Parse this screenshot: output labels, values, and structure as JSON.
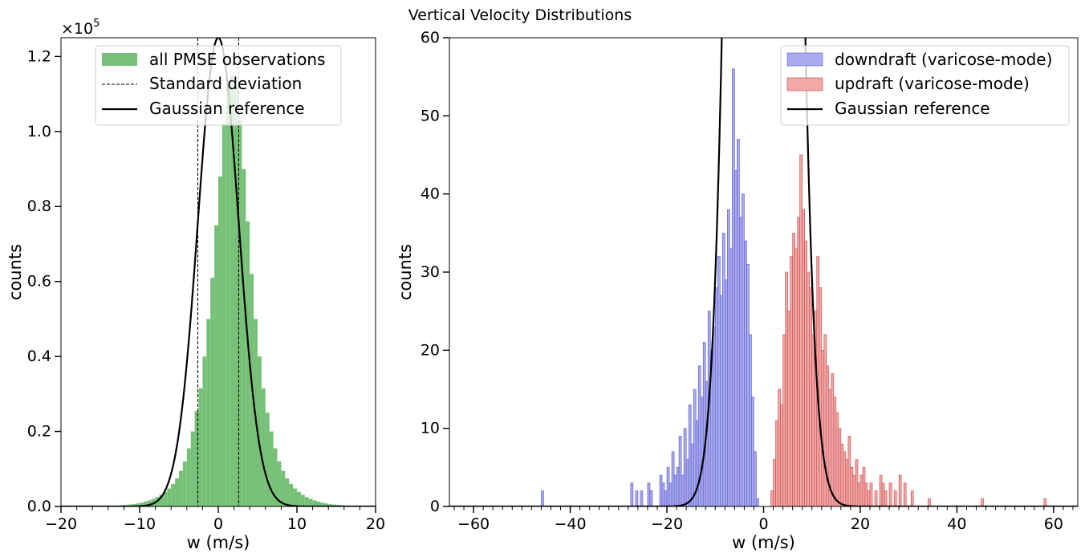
{
  "figure": {
    "title": "Vertical Velocity Distributions"
  },
  "chart_data": [
    {
      "type": "bar",
      "xlabel": "w (m/s)",
      "ylabel": "counts",
      "y_multiplier_label": "×10",
      "y_multiplier_exp": "5",
      "xlim": [
        -20,
        20
      ],
      "ylim": [
        0,
        125000
      ],
      "xticks": [
        -20,
        -10,
        0,
        10,
        20
      ],
      "xtick_labels": [
        "−20",
        "−10",
        "0",
        "10",
        "20"
      ],
      "yticks": [
        0,
        20000,
        40000,
        60000,
        80000,
        100000,
        120000
      ],
      "ytick_labels": [
        "0.0",
        "0.2",
        "0.4",
        "0.6",
        "0.8",
        "1.0",
        "1.2"
      ],
      "grid": false,
      "legend_position": "top-center",
      "histogram": {
        "name": "all PMSE observations",
        "color": "#77c077",
        "bin_width": 0.5,
        "bin_start": -14,
        "counts": [
          100,
          150,
          200,
          300,
          400,
          500,
          600,
          800,
          1000,
          1300,
          1600,
          2000,
          2500,
          3100,
          3900,
          4800,
          6000,
          7500,
          9500,
          12000,
          15500,
          20000,
          25500,
          31500,
          40000,
          50000,
          61000,
          75000,
          88000,
          102000,
          112000,
          115000,
          112000,
          103000,
          90000,
          76000,
          62000,
          50000,
          40000,
          31500,
          25000,
          20000,
          15500,
          12000,
          9500,
          7500,
          6000,
          4800,
          3900,
          3100,
          2500,
          2000,
          1600,
          1300,
          1000,
          800,
          600,
          500,
          400,
          300
        ]
      },
      "std_lines": {
        "name": "Standard deviation",
        "values": [
          -2.6,
          2.6
        ]
      },
      "gaussian": {
        "name": "Gaussian reference",
        "mean": 0,
        "sigma": 2.6,
        "peak": 125000
      }
    },
    {
      "type": "bar",
      "xlabel": "w (m/s)",
      "ylabel": "counts",
      "xlim": [
        -65,
        65
      ],
      "ylim": [
        0,
        60
      ],
      "xticks": [
        -60,
        -40,
        -20,
        0,
        20,
        40,
        60
      ],
      "xtick_labels": [
        "−60",
        "−40",
        "−20",
        "0",
        "20",
        "40",
        "60"
      ],
      "yticks": [
        0,
        10,
        20,
        30,
        40,
        50,
        60
      ],
      "ytick_labels": [
        "0",
        "10",
        "20",
        "30",
        "40",
        "50",
        "60"
      ],
      "grid": false,
      "legend_position": "top-right",
      "series": [
        {
          "name": "downdraft (varicose-mode)",
          "fill": "#aaaaee",
          "stroke": "#5555cc",
          "bin_width": 0.5,
          "bins": [
            [
              -46,
              2
            ],
            [
              -27.5,
              3
            ],
            [
              -26.5,
              2
            ],
            [
              -25.5,
              2
            ],
            [
              -24,
              3
            ],
            [
              -23.5,
              2
            ],
            [
              -21.5,
              4
            ],
            [
              -21,
              3
            ],
            [
              -20.5,
              2
            ],
            [
              -20,
              5
            ],
            [
              -19.5,
              3
            ],
            [
              -19,
              7
            ],
            [
              -18.5,
              4
            ],
            [
              -18,
              5
            ],
            [
              -17.5,
              9
            ],
            [
              -17,
              4
            ],
            [
              -16.5,
              10
            ],
            [
              -16,
              6
            ],
            [
              -15.5,
              13
            ],
            [
              -15,
              8
            ],
            [
              -14.5,
              15
            ],
            [
              -14,
              11
            ],
            [
              -13.5,
              18
            ],
            [
              -13,
              14
            ],
            [
              -12.5,
              21
            ],
            [
              -12,
              16
            ],
            [
              -11.5,
              25
            ],
            [
              -11,
              20
            ],
            [
              -10.5,
              23
            ],
            [
              -10,
              28
            ],
            [
              -9.5,
              32
            ],
            [
              -9,
              27
            ],
            [
              -8.5,
              35
            ],
            [
              -8,
              29
            ],
            [
              -7.5,
              38
            ],
            [
              -7,
              33
            ],
            [
              -6.5,
              56
            ],
            [
              -6,
              43
            ],
            [
              -5.5,
              47
            ],
            [
              -5,
              37
            ],
            [
              -4.5,
              40
            ],
            [
              -4,
              34
            ],
            [
              -3.5,
              31
            ],
            [
              -3,
              22
            ],
            [
              -2.5,
              14
            ],
            [
              -2,
              7
            ],
            [
              -1.5,
              1
            ]
          ]
        },
        {
          "name": "updraft (varicose-mode)",
          "fill": "#f0a8a8",
          "stroke": "#cc4444",
          "bin_width": 0.5,
          "bins": [
            [
              1.5,
              2
            ],
            [
              2,
              6
            ],
            [
              2.5,
              11
            ],
            [
              3,
              15
            ],
            [
              3.5,
              13
            ],
            [
              4,
              22
            ],
            [
              4.5,
              30
            ],
            [
              5,
              25
            ],
            [
              5.5,
              32
            ],
            [
              6,
              35
            ],
            [
              6.5,
              33
            ],
            [
              7,
              37
            ],
            [
              7.5,
              45
            ],
            [
              8,
              38
            ],
            [
              8.5,
              34
            ],
            [
              9,
              30
            ],
            [
              9.5,
              28
            ],
            [
              10,
              22
            ],
            [
              10.5,
              25
            ],
            [
              11,
              32
            ],
            [
              11.5,
              28
            ],
            [
              12,
              20
            ],
            [
              12.5,
              22
            ],
            [
              13,
              18
            ],
            [
              13.5,
              15
            ],
            [
              14,
              17
            ],
            [
              14.5,
              14
            ],
            [
              15,
              12
            ],
            [
              15.5,
              10
            ],
            [
              16,
              8
            ],
            [
              16.5,
              7
            ],
            [
              17,
              6
            ],
            [
              17.5,
              9
            ],
            [
              18,
              5
            ],
            [
              18.5,
              4
            ],
            [
              19,
              6
            ],
            [
              19.5,
              3
            ],
            [
              20,
              4
            ],
            [
              20.5,
              5
            ],
            [
              21,
              3
            ],
            [
              21.5,
              2
            ],
            [
              22,
              3
            ],
            [
              23,
              2
            ],
            [
              24,
              4
            ],
            [
              24.5,
              3
            ],
            [
              25,
              2
            ],
            [
              26,
              3
            ],
            [
              27,
              2
            ],
            [
              28,
              4
            ],
            [
              29,
              3
            ],
            [
              30.5,
              2
            ],
            [
              34,
              1
            ],
            [
              45,
              1
            ],
            [
              58,
              1
            ]
          ]
        }
      ],
      "gaussian": {
        "name": "Gaussian reference",
        "mean": 0,
        "sigma": 4.2,
        "peak": 500
      }
    }
  ]
}
